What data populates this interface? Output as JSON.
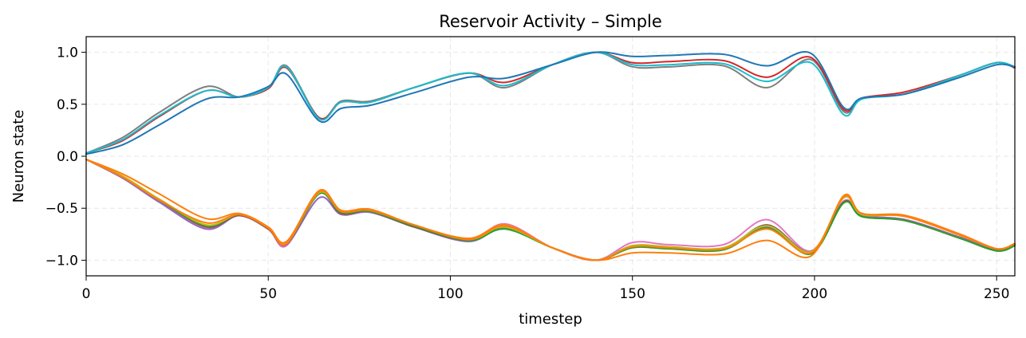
{
  "chart_data": {
    "type": "line",
    "title": "Reservoir Activity – Simple",
    "xlabel": "timestep",
    "ylabel": "Neuron state",
    "xlim": [
      0,
      255
    ],
    "ylim": [
      -1.15,
      1.15
    ],
    "xticks": [
      0,
      50,
      100,
      150,
      200,
      250
    ],
    "xtick_labels": [
      "0",
      "50",
      "100",
      "150",
      "200",
      "250"
    ],
    "yticks": [
      1.0,
      0.5,
      0.0,
      -0.5,
      -1.0
    ],
    "ytick_labels": [
      "1.0",
      "0.5",
      "0.0",
      "−0.5",
      "−1.0"
    ],
    "grid": true,
    "legend": "none",
    "series": [
      {
        "color": "#7f7f7f",
        "points": [
          [
            0,
            0.03
          ],
          [
            10,
            0.18
          ],
          [
            20,
            0.42
          ],
          [
            33,
            0.67
          ],
          [
            42,
            0.57
          ],
          [
            50,
            0.66
          ],
          [
            55,
            0.87
          ],
          [
            64,
            0.37
          ],
          [
            70,
            0.53
          ],
          [
            78,
            0.53
          ],
          [
            90,
            0.66
          ],
          [
            105,
            0.8
          ],
          [
            115,
            0.66
          ],
          [
            128,
            0.88
          ],
          [
            140,
            1.0
          ],
          [
            150,
            0.86
          ],
          [
            160,
            0.86
          ],
          [
            175,
            0.87
          ],
          [
            187,
            0.66
          ],
          [
            199,
            0.93
          ],
          [
            208,
            0.43
          ],
          [
            213,
            0.56
          ],
          [
            225,
            0.6
          ],
          [
            240,
            0.78
          ],
          [
            250,
            0.9
          ],
          [
            255,
            0.85
          ]
        ]
      },
      {
        "color": "#d62728",
        "points": [
          [
            0,
            0.03
          ],
          [
            10,
            0.15
          ],
          [
            20,
            0.38
          ],
          [
            33,
            0.63
          ],
          [
            42,
            0.57
          ],
          [
            50,
            0.65
          ],
          [
            55,
            0.85
          ],
          [
            64,
            0.37
          ],
          [
            70,
            0.52
          ],
          [
            78,
            0.52
          ],
          [
            90,
            0.66
          ],
          [
            105,
            0.8
          ],
          [
            115,
            0.71
          ],
          [
            128,
            0.88
          ],
          [
            140,
            1.0
          ],
          [
            150,
            0.9
          ],
          [
            160,
            0.91
          ],
          [
            175,
            0.92
          ],
          [
            187,
            0.76
          ],
          [
            199,
            0.95
          ],
          [
            208,
            0.45
          ],
          [
            213,
            0.56
          ],
          [
            225,
            0.62
          ],
          [
            240,
            0.78
          ],
          [
            250,
            0.9
          ],
          [
            255,
            0.85
          ]
        ]
      },
      {
        "color": "#17becf",
        "points": [
          [
            0,
            0.03
          ],
          [
            10,
            0.16
          ],
          [
            20,
            0.39
          ],
          [
            33,
            0.63
          ],
          [
            42,
            0.57
          ],
          [
            50,
            0.66
          ],
          [
            55,
            0.86
          ],
          [
            64,
            0.36
          ],
          [
            70,
            0.52
          ],
          [
            78,
            0.52
          ],
          [
            90,
            0.66
          ],
          [
            105,
            0.8
          ],
          [
            115,
            0.68
          ],
          [
            128,
            0.88
          ],
          [
            140,
            1.0
          ],
          [
            150,
            0.88
          ],
          [
            160,
            0.88
          ],
          [
            175,
            0.89
          ],
          [
            187,
            0.72
          ],
          [
            199,
            0.9
          ],
          [
            208,
            0.4
          ],
          [
            213,
            0.55
          ],
          [
            225,
            0.6
          ],
          [
            240,
            0.78
          ],
          [
            250,
            0.9
          ],
          [
            255,
            0.86
          ]
        ]
      },
      {
        "color": "#1f77b4",
        "points": [
          [
            0,
            0.02
          ],
          [
            10,
            0.11
          ],
          [
            20,
            0.3
          ],
          [
            33,
            0.55
          ],
          [
            42,
            0.57
          ],
          [
            50,
            0.67
          ],
          [
            55,
            0.79
          ],
          [
            64,
            0.34
          ],
          [
            70,
            0.46
          ],
          [
            78,
            0.49
          ],
          [
            90,
            0.61
          ],
          [
            105,
            0.76
          ],
          [
            115,
            0.75
          ],
          [
            128,
            0.88
          ],
          [
            140,
            1.0
          ],
          [
            150,
            0.96
          ],
          [
            160,
            0.97
          ],
          [
            175,
            0.98
          ],
          [
            187,
            0.87
          ],
          [
            199,
            0.99
          ],
          [
            208,
            0.47
          ],
          [
            213,
            0.56
          ],
          [
            225,
            0.6
          ],
          [
            240,
            0.76
          ],
          [
            250,
            0.88
          ],
          [
            255,
            0.86
          ]
        ]
      },
      {
        "color": "#e377c2",
        "points": [
          [
            0,
            -0.03
          ],
          [
            10,
            -0.21
          ],
          [
            20,
            -0.43
          ],
          [
            33,
            -0.69
          ],
          [
            42,
            -0.57
          ],
          [
            50,
            -0.7
          ],
          [
            55,
            -0.86
          ],
          [
            64,
            -0.35
          ],
          [
            70,
            -0.53
          ],
          [
            78,
            -0.52
          ],
          [
            90,
            -0.67
          ],
          [
            105,
            -0.81
          ],
          [
            115,
            -0.65
          ],
          [
            128,
            -0.88
          ],
          [
            140,
            -1.0
          ],
          [
            150,
            -0.83
          ],
          [
            160,
            -0.85
          ],
          [
            175,
            -0.85
          ],
          [
            187,
            -0.61
          ],
          [
            199,
            -0.91
          ],
          [
            208,
            -0.43
          ],
          [
            213,
            -0.57
          ],
          [
            225,
            -0.61
          ],
          [
            240,
            -0.78
          ],
          [
            250,
            -0.9
          ],
          [
            255,
            -0.85
          ]
        ]
      },
      {
        "color": "#9467bd",
        "points": [
          [
            0,
            -0.03
          ],
          [
            10,
            -0.21
          ],
          [
            20,
            -0.44
          ],
          [
            33,
            -0.7
          ],
          [
            42,
            -0.57
          ],
          [
            50,
            -0.7
          ],
          [
            55,
            -0.85
          ],
          [
            64,
            -0.4
          ],
          [
            70,
            -0.56
          ],
          [
            78,
            -0.54
          ],
          [
            90,
            -0.68
          ],
          [
            105,
            -0.82
          ],
          [
            115,
            -0.69
          ],
          [
            128,
            -0.88
          ],
          [
            140,
            -1.0
          ],
          [
            150,
            -0.86
          ],
          [
            160,
            -0.88
          ],
          [
            175,
            -0.89
          ],
          [
            187,
            -0.68
          ],
          [
            199,
            -0.92
          ],
          [
            208,
            -0.44
          ],
          [
            213,
            -0.57
          ],
          [
            225,
            -0.61
          ],
          [
            240,
            -0.78
          ],
          [
            250,
            -0.9
          ],
          [
            255,
            -0.85
          ]
        ]
      },
      {
        "color": "#8c564b",
        "points": [
          [
            0,
            -0.03
          ],
          [
            10,
            -0.2
          ],
          [
            20,
            -0.42
          ],
          [
            33,
            -0.68
          ],
          [
            42,
            -0.57
          ],
          [
            50,
            -0.7
          ],
          [
            55,
            -0.84
          ],
          [
            64,
            -0.36
          ],
          [
            70,
            -0.55
          ],
          [
            78,
            -0.53
          ],
          [
            90,
            -0.68
          ],
          [
            105,
            -0.81
          ],
          [
            115,
            -0.68
          ],
          [
            128,
            -0.88
          ],
          [
            140,
            -1.0
          ],
          [
            150,
            -0.87
          ],
          [
            160,
            -0.88
          ],
          [
            175,
            -0.89
          ],
          [
            187,
            -0.66
          ],
          [
            199,
            -0.92
          ],
          [
            208,
            -0.44
          ],
          [
            213,
            -0.58
          ],
          [
            225,
            -0.62
          ],
          [
            240,
            -0.79
          ],
          [
            250,
            -0.91
          ],
          [
            255,
            -0.86
          ]
        ]
      },
      {
        "color": "#2ca02c",
        "points": [
          [
            0,
            -0.03
          ],
          [
            10,
            -0.2
          ],
          [
            20,
            -0.42
          ],
          [
            33,
            -0.67
          ],
          [
            42,
            -0.56
          ],
          [
            50,
            -0.69
          ],
          [
            55,
            -0.84
          ],
          [
            64,
            -0.36
          ],
          [
            70,
            -0.54
          ],
          [
            78,
            -0.53
          ],
          [
            90,
            -0.67
          ],
          [
            105,
            -0.81
          ],
          [
            115,
            -0.7
          ],
          [
            128,
            -0.88
          ],
          [
            140,
            -1.0
          ],
          [
            150,
            -0.88
          ],
          [
            160,
            -0.89
          ],
          [
            175,
            -0.9
          ],
          [
            187,
            -0.69
          ],
          [
            199,
            -0.94
          ],
          [
            208,
            -0.45
          ],
          [
            213,
            -0.58
          ],
          [
            225,
            -0.62
          ],
          [
            240,
            -0.79
          ],
          [
            250,
            -0.91
          ],
          [
            255,
            -0.86
          ]
        ]
      },
      {
        "color": "#bcbd22",
        "points": [
          [
            0,
            -0.03
          ],
          [
            10,
            -0.19
          ],
          [
            20,
            -0.41
          ],
          [
            33,
            -0.66
          ],
          [
            42,
            -0.56
          ],
          [
            50,
            -0.69
          ],
          [
            55,
            -0.83
          ],
          [
            64,
            -0.35
          ],
          [
            70,
            -0.53
          ],
          [
            78,
            -0.52
          ],
          [
            90,
            -0.66
          ],
          [
            105,
            -0.8
          ],
          [
            115,
            -0.68
          ],
          [
            128,
            -0.88
          ],
          [
            140,
            -1.0
          ],
          [
            150,
            -0.86
          ],
          [
            160,
            -0.87
          ],
          [
            175,
            -0.88
          ],
          [
            187,
            -0.67
          ],
          [
            199,
            -0.92
          ],
          [
            208,
            -0.4
          ],
          [
            213,
            -0.56
          ],
          [
            225,
            -0.58
          ],
          [
            240,
            -0.76
          ],
          [
            250,
            -0.89
          ],
          [
            255,
            -0.84
          ]
        ]
      },
      {
        "color": "#ff7f0e",
        "points": [
          [
            0,
            -0.03
          ],
          [
            10,
            -0.17
          ],
          [
            20,
            -0.36
          ],
          [
            33,
            -0.6
          ],
          [
            42,
            -0.55
          ],
          [
            50,
            -0.68
          ],
          [
            55,
            -0.82
          ],
          [
            64,
            -0.33
          ],
          [
            70,
            -0.52
          ],
          [
            78,
            -0.51
          ],
          [
            90,
            -0.66
          ],
          [
            105,
            -0.79
          ],
          [
            115,
            -0.66
          ],
          [
            128,
            -0.88
          ],
          [
            140,
            -1.0
          ],
          [
            150,
            -0.93
          ],
          [
            160,
            -0.93
          ],
          [
            175,
            -0.94
          ],
          [
            187,
            -0.81
          ],
          [
            199,
            -0.96
          ],
          [
            208,
            -0.38
          ],
          [
            213,
            -0.55
          ],
          [
            225,
            -0.57
          ],
          [
            240,
            -0.75
          ],
          [
            250,
            -0.89
          ],
          [
            255,
            -0.84
          ]
        ]
      },
      {
        "color": "#ff7f0e",
        "points": [
          [
            0,
            -0.03
          ],
          [
            10,
            -0.2
          ],
          [
            20,
            -0.42
          ],
          [
            33,
            -0.64
          ],
          [
            42,
            -0.56
          ],
          [
            50,
            -0.69
          ],
          [
            55,
            -0.84
          ],
          [
            64,
            -0.34
          ],
          [
            70,
            -0.53
          ],
          [
            78,
            -0.52
          ],
          [
            90,
            -0.66
          ],
          [
            105,
            -0.8
          ],
          [
            115,
            -0.67
          ],
          [
            128,
            -0.88
          ],
          [
            140,
            -1.0
          ],
          [
            150,
            -0.87
          ],
          [
            160,
            -0.88
          ],
          [
            175,
            -0.89
          ],
          [
            187,
            -0.7
          ],
          [
            199,
            -0.93
          ],
          [
            208,
            -0.39
          ],
          [
            213,
            -0.55
          ],
          [
            225,
            -0.58
          ],
          [
            240,
            -0.76
          ],
          [
            250,
            -0.89
          ],
          [
            255,
            -0.84
          ]
        ]
      }
    ]
  }
}
